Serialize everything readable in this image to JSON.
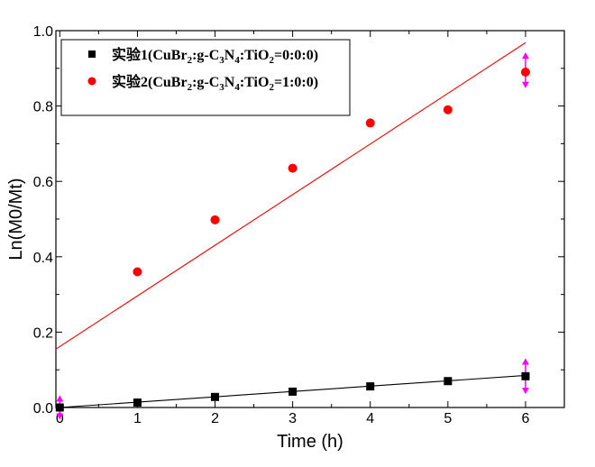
{
  "chart_data": {
    "type": "scatter",
    "title": "",
    "xlabel": "Time (h)",
    "ylabel": "Ln(M0/Mt)",
    "xlim": [
      -0.05,
      6.5
    ],
    "ylim": [
      0.0,
      1.0
    ],
    "x_ticks": [
      "0",
      "1",
      "2",
      "3",
      "4",
      "5",
      "6"
    ],
    "y_ticks": [
      "0.0",
      "0.2",
      "0.4",
      "0.6",
      "0.8",
      "1.0"
    ],
    "grid": false,
    "legend_position": "top-left",
    "series": [
      {
        "name": "实验1(CuBr2:g-C3N4:TiO2=0:0:0)",
        "legend_parts": [
          "实验1(CuBr",
          "2",
          ":g-C",
          "3",
          "N",
          "4",
          ":TiO",
          "2",
          "=0:0:0)"
        ],
        "marker": "square",
        "color": "#000000",
        "x": [
          0,
          1,
          2,
          3,
          4,
          5,
          6
        ],
        "y": [
          0.0,
          0.013,
          0.028,
          0.042,
          0.056,
          0.07,
          0.083
        ],
        "fit": {
          "x": [
            0,
            6
          ],
          "y": [
            0.0,
            0.085
          ]
        },
        "error_bars": [
          {
            "x": 0,
            "low": -0.03,
            "high": 0.03
          },
          {
            "x": 6,
            "low": 0.038,
            "high": 0.128
          }
        ]
      },
      {
        "name": "实验2(CuBr2:g-C3N4:TiO2=1:0:0)",
        "legend_parts": [
          "实验2(CuBr",
          "2",
          ":g-C",
          "3",
          "N",
          "4",
          ":TiO",
          "2",
          "=1:0:0)"
        ],
        "marker": "circle",
        "color": "#ff0000",
        "x": [
          1,
          2,
          3,
          4,
          5,
          6
        ],
        "y": [
          0.36,
          0.498,
          0.635,
          0.755,
          0.79,
          0.89
        ],
        "fit": {
          "x": [
            -0.05,
            6
          ],
          "y": [
            0.155,
            0.968
          ]
        },
        "error_bars": [
          {
            "x": 6,
            "low": 0.85,
            "high": 0.94
          }
        ]
      }
    ],
    "error_bar_color": "#ff00ff"
  }
}
